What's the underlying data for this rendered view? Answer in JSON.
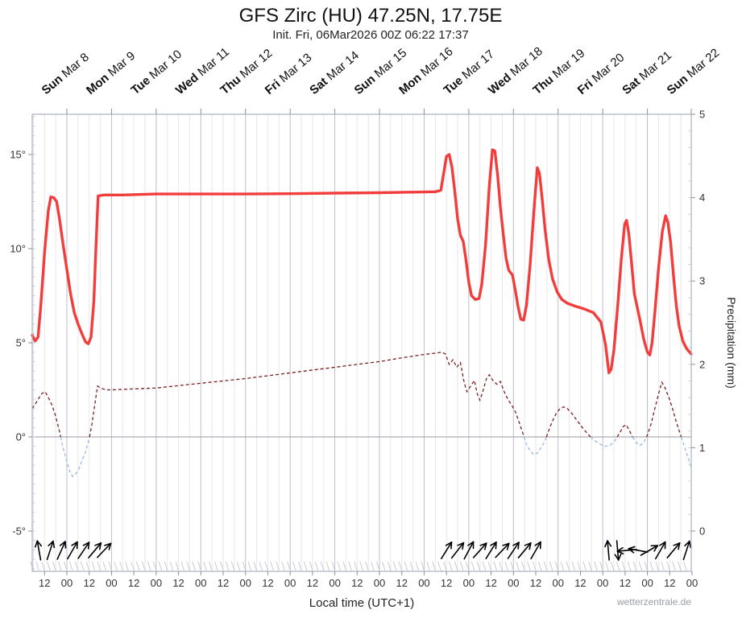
{
  "title": "GFS Zirc (HU) 47.25N, 17.75E",
  "subtitle": "Init. Fri, 06Mar2026 00Z 06:22 17:37",
  "footer": {
    "xlabel": "Local time (UTC+1)",
    "watermark": "wetterzentrale.de"
  },
  "chart_data": {
    "type": "line",
    "title": "GFS Zirc (HU) 47.25N, 17.75E",
    "subtitle": "Init. Fri, 06Mar2026 00Z 06:22 17:37",
    "x_axis": {
      "label": "Local time (UTC+1)",
      "hours_range": [
        -18.6,
        335.6
      ],
      "ticks": [
        [
          -12,
          "12"
        ],
        [
          0,
          "00"
        ],
        [
          12,
          "12"
        ],
        [
          24,
          "00"
        ],
        [
          36,
          "12"
        ],
        [
          48,
          "00"
        ],
        [
          60,
          "12"
        ],
        [
          72,
          "00"
        ],
        [
          84,
          "12"
        ],
        [
          96,
          "00"
        ],
        [
          108,
          "12"
        ],
        [
          120,
          "00"
        ],
        [
          132,
          "12"
        ],
        [
          144,
          "00"
        ],
        [
          156,
          "12"
        ],
        [
          168,
          "00"
        ],
        [
          180,
          "12"
        ],
        [
          192,
          "00"
        ],
        [
          204,
          "12"
        ],
        [
          216,
          "00"
        ],
        [
          228,
          "12"
        ],
        [
          240,
          "00"
        ],
        [
          252,
          "12"
        ],
        [
          264,
          "00"
        ],
        [
          276,
          "12"
        ],
        [
          288,
          "00"
        ],
        [
          300,
          "12"
        ],
        [
          312,
          "00"
        ],
        [
          324,
          "12"
        ],
        [
          336,
          "00"
        ]
      ]
    },
    "days": [
      {
        "day": "Sun",
        "date": "Mar 8"
      },
      {
        "day": "Mon",
        "date": "Mar 9"
      },
      {
        "day": "Tue",
        "date": "Mar 10"
      },
      {
        "day": "Wed",
        "date": "Mar 11"
      },
      {
        "day": "Thu",
        "date": "Mar 12"
      },
      {
        "day": "Fri",
        "date": "Mar 13"
      },
      {
        "day": "Sat",
        "date": "Mar 14"
      },
      {
        "day": "Sun",
        "date": "Mar 15"
      },
      {
        "day": "Mon",
        "date": "Mar 16"
      },
      {
        "day": "Tue",
        "date": "Mar 17"
      },
      {
        "day": "Wed",
        "date": "Mar 18"
      },
      {
        "day": "Thu",
        "date": "Mar 19"
      },
      {
        "day": "Fri",
        "date": "Mar 20"
      },
      {
        "day": "Sat",
        "date": "Mar 21"
      },
      {
        "day": "Sun",
        "date": "Mar 22"
      }
    ],
    "temp_axis": {
      "ticks": [
        [
          -5,
          "-5°"
        ],
        [
          0,
          "0°"
        ],
        [
          5,
          "5°"
        ],
        [
          10,
          "10°"
        ],
        [
          15,
          "15°"
        ]
      ],
      "range": [
        -7.1,
        17.1
      ]
    },
    "precip_axis": {
      "label": "Precipitation (mm)",
      "ticks": [
        [
          0,
          "0"
        ],
        [
          1,
          "1"
        ],
        [
          2,
          "2"
        ],
        [
          3,
          "3"
        ],
        [
          4,
          "4"
        ],
        [
          5,
          "5"
        ]
      ],
      "range": [
        0,
        5.5
      ]
    },
    "grid": {
      "minor_step_hours": 6,
      "day_step_hours": 24
    },
    "colors": {
      "temperature": "#f23d3d",
      "dewpoint_above": "#7b1e1e",
      "dewpoint_below": "#97bbdf",
      "grid_minor": "#e6e6ec",
      "grid_day": "#b9bfcd",
      "frame": "#a9b0c2",
      "zero_line": "#9a9aa0",
      "comb": "#c9c9d2",
      "wind": "#000000"
    },
    "series": [
      {
        "name": "2m temperature",
        "style": "solid",
        "points": [
          [
            -18.6,
            5.4
          ],
          [
            -17,
            5.1
          ],
          [
            -15.5,
            5.3
          ],
          [
            -14,
            7.0
          ],
          [
            -12,
            9.8
          ],
          [
            -10,
            12.0
          ],
          [
            -8.6,
            12.75
          ],
          [
            -7,
            12.7
          ],
          [
            -5.5,
            12.5
          ],
          [
            -4,
            11.6
          ],
          [
            -2,
            10.2
          ],
          [
            0,
            8.9
          ],
          [
            2,
            7.6
          ],
          [
            4,
            6.6
          ],
          [
            6,
            6.0
          ],
          [
            8,
            5.5
          ],
          [
            10,
            5.05
          ],
          [
            11.5,
            4.95
          ],
          [
            13,
            5.3
          ],
          [
            14.5,
            7.2
          ],
          [
            15.8,
            10.5
          ],
          [
            16.8,
            12.8
          ],
          [
            20,
            12.85
          ],
          [
            30,
            12.85
          ],
          [
            48,
            12.9
          ],
          [
            72,
            12.9
          ],
          [
            96,
            12.9
          ],
          [
            120,
            12.92
          ],
          [
            144,
            12.95
          ],
          [
            168,
            12.97
          ],
          [
            186,
            13.0
          ],
          [
            198,
            13.02
          ],
          [
            201,
            13.1
          ],
          [
            202.5,
            14.0
          ],
          [
            204,
            14.9
          ],
          [
            205.5,
            15.0
          ],
          [
            207,
            14.3
          ],
          [
            208.5,
            13.0
          ],
          [
            210,
            11.6
          ],
          [
            211.5,
            10.7
          ],
          [
            213,
            10.4
          ],
          [
            214.5,
            9.4
          ],
          [
            216,
            8.2
          ],
          [
            217.5,
            7.5
          ],
          [
            219.5,
            7.3
          ],
          [
            221.5,
            7.35
          ],
          [
            223,
            8.1
          ],
          [
            225,
            10.2
          ],
          [
            227,
            13.3
          ],
          [
            228.7,
            15.25
          ],
          [
            230,
            15.2
          ],
          [
            231.5,
            13.9
          ],
          [
            233,
            12.2
          ],
          [
            234.5,
            10.8
          ],
          [
            236,
            9.5
          ],
          [
            237.5,
            8.85
          ],
          [
            239.5,
            8.6
          ],
          [
            241,
            7.8
          ],
          [
            242.5,
            6.9
          ],
          [
            244,
            6.25
          ],
          [
            245.5,
            6.2
          ],
          [
            247,
            7.0
          ],
          [
            249,
            9.2
          ],
          [
            251,
            12.0
          ],
          [
            252.8,
            14.3
          ],
          [
            254,
            14.0
          ],
          [
            255.5,
            12.6
          ],
          [
            257,
            11.0
          ],
          [
            259,
            9.4
          ],
          [
            261,
            8.4
          ],
          [
            263.5,
            7.7
          ],
          [
            266,
            7.3
          ],
          [
            269,
            7.1
          ],
          [
            273,
            6.95
          ],
          [
            278,
            6.8
          ],
          [
            283,
            6.6
          ],
          [
            287,
            6.1
          ],
          [
            289.5,
            4.9
          ],
          [
            291.3,
            3.4
          ],
          [
            292.5,
            3.6
          ],
          [
            294,
            4.6
          ],
          [
            296,
            6.9
          ],
          [
            298,
            9.5
          ],
          [
            299.8,
            11.3
          ],
          [
            300.8,
            11.5
          ],
          [
            302,
            10.8
          ],
          [
            303.5,
            9.2
          ],
          [
            305,
            7.6
          ],
          [
            306.5,
            6.9
          ],
          [
            308,
            6.2
          ],
          [
            310,
            5.2
          ],
          [
            312,
            4.5
          ],
          [
            313.3,
            4.35
          ],
          [
            314.5,
            5.0
          ],
          [
            316,
            6.6
          ],
          [
            318,
            9.0
          ],
          [
            320,
            10.9
          ],
          [
            321.8,
            11.75
          ],
          [
            323,
            11.4
          ],
          [
            324.5,
            10.3
          ],
          [
            326,
            8.6
          ],
          [
            327.5,
            7.0
          ],
          [
            329,
            5.9
          ],
          [
            331,
            5.1
          ],
          [
            333,
            4.7
          ],
          [
            335.5,
            4.4
          ]
        ]
      },
      {
        "name": "dew point",
        "style": "dashed",
        "split_at": 0,
        "points": [
          [
            -18.6,
            1.5
          ],
          [
            -16,
            1.9
          ],
          [
            -13.5,
            2.3
          ],
          [
            -11.7,
            2.4
          ],
          [
            -10,
            2.1
          ],
          [
            -8,
            1.7
          ],
          [
            -6,
            1.1
          ],
          [
            -4,
            0.3
          ],
          [
            -2,
            -0.6
          ],
          [
            0,
            -1.3
          ],
          [
            1.5,
            -1.8
          ],
          [
            3,
            -2.1
          ],
          [
            4.5,
            -2.0
          ],
          [
            6,
            -1.8
          ],
          [
            8,
            -1.3
          ],
          [
            10,
            -0.8
          ],
          [
            12,
            -0.1
          ],
          [
            13.5,
            0.7
          ],
          [
            15,
            1.7
          ],
          [
            16.5,
            2.7
          ],
          [
            18,
            2.6
          ],
          [
            21,
            2.5
          ],
          [
            24,
            2.5
          ],
          [
            36,
            2.55
          ],
          [
            48,
            2.6
          ],
          [
            72,
            2.85
          ],
          [
            96,
            3.1
          ],
          [
            120,
            3.4
          ],
          [
            144,
            3.7
          ],
          [
            168,
            4.0
          ],
          [
            180,
            4.2
          ],
          [
            192,
            4.38
          ],
          [
            198,
            4.45
          ],
          [
            201.5,
            4.5
          ],
          [
            203.5,
            4.4
          ],
          [
            205.5,
            3.85
          ],
          [
            207.5,
            4.1
          ],
          [
            209.5,
            3.7
          ],
          [
            211.5,
            3.95
          ],
          [
            213.5,
            2.9
          ],
          [
            215,
            2.4
          ],
          [
            217,
            2.7
          ],
          [
            219,
            3.0
          ],
          [
            220.5,
            2.3
          ],
          [
            222,
            1.95
          ],
          [
            223.5,
            2.4
          ],
          [
            225.5,
            3.1
          ],
          [
            227,
            3.3
          ],
          [
            229,
            3.0
          ],
          [
            231,
            2.8
          ],
          [
            233,
            2.95
          ],
          [
            235,
            2.4
          ],
          [
            237,
            2.0
          ],
          [
            239,
            1.7
          ],
          [
            241,
            1.35
          ],
          [
            243,
            0.8
          ],
          [
            245,
            0.2
          ],
          [
            247,
            -0.4
          ],
          [
            249,
            -0.75
          ],
          [
            251,
            -0.95
          ],
          [
            253,
            -0.85
          ],
          [
            255,
            -0.55
          ],
          [
            257,
            -0.2
          ],
          [
            259,
            0.35
          ],
          [
            261,
            0.85
          ],
          [
            263,
            1.25
          ],
          [
            265,
            1.5
          ],
          [
            267,
            1.6
          ],
          [
            269,
            1.5
          ],
          [
            271,
            1.3
          ],
          [
            274,
            0.9
          ],
          [
            277,
            0.5
          ],
          [
            280,
            0.15
          ],
          [
            283,
            -0.15
          ],
          [
            286,
            -0.35
          ],
          [
            289,
            -0.5
          ],
          [
            292,
            -0.45
          ],
          [
            294.5,
            -0.2
          ],
          [
            297,
            0.2
          ],
          [
            299,
            0.55
          ],
          [
            300.5,
            0.65
          ],
          [
            302,
            0.4
          ],
          [
            304,
            0.0
          ],
          [
            306,
            -0.3
          ],
          [
            308,
            -0.45
          ],
          [
            310,
            -0.3
          ],
          [
            312,
            0.1
          ],
          [
            314,
            0.7
          ],
          [
            316,
            1.5
          ],
          [
            318,
            2.3
          ],
          [
            319.8,
            2.9
          ],
          [
            321.5,
            2.6
          ],
          [
            323.5,
            2.1
          ],
          [
            325.5,
            1.5
          ],
          [
            327.5,
            0.8
          ],
          [
            329.5,
            0.2
          ],
          [
            331.5,
            -0.4
          ],
          [
            333.5,
            -1.0
          ],
          [
            335.5,
            -1.6
          ]
        ]
      }
    ],
    "wind_arrows": [
      [
        -15,
        100
      ],
      [
        -9,
        72
      ],
      [
        -3,
        66
      ],
      [
        3,
        60
      ],
      [
        9,
        56
      ],
      [
        15,
        50
      ],
      [
        20,
        46
      ],
      [
        204,
        58
      ],
      [
        210,
        52
      ],
      [
        216,
        62
      ],
      [
        222,
        48
      ],
      [
        228,
        58
      ],
      [
        234,
        46
      ],
      [
        240,
        56
      ],
      [
        246,
        50
      ],
      [
        252,
        60
      ],
      [
        291,
        95
      ],
      [
        296,
        -85
      ],
      [
        301,
        185
      ],
      [
        307,
        170
      ],
      [
        313,
        30
      ],
      [
        319,
        60
      ],
      [
        326,
        50
      ],
      [
        333,
        72
      ]
    ]
  }
}
